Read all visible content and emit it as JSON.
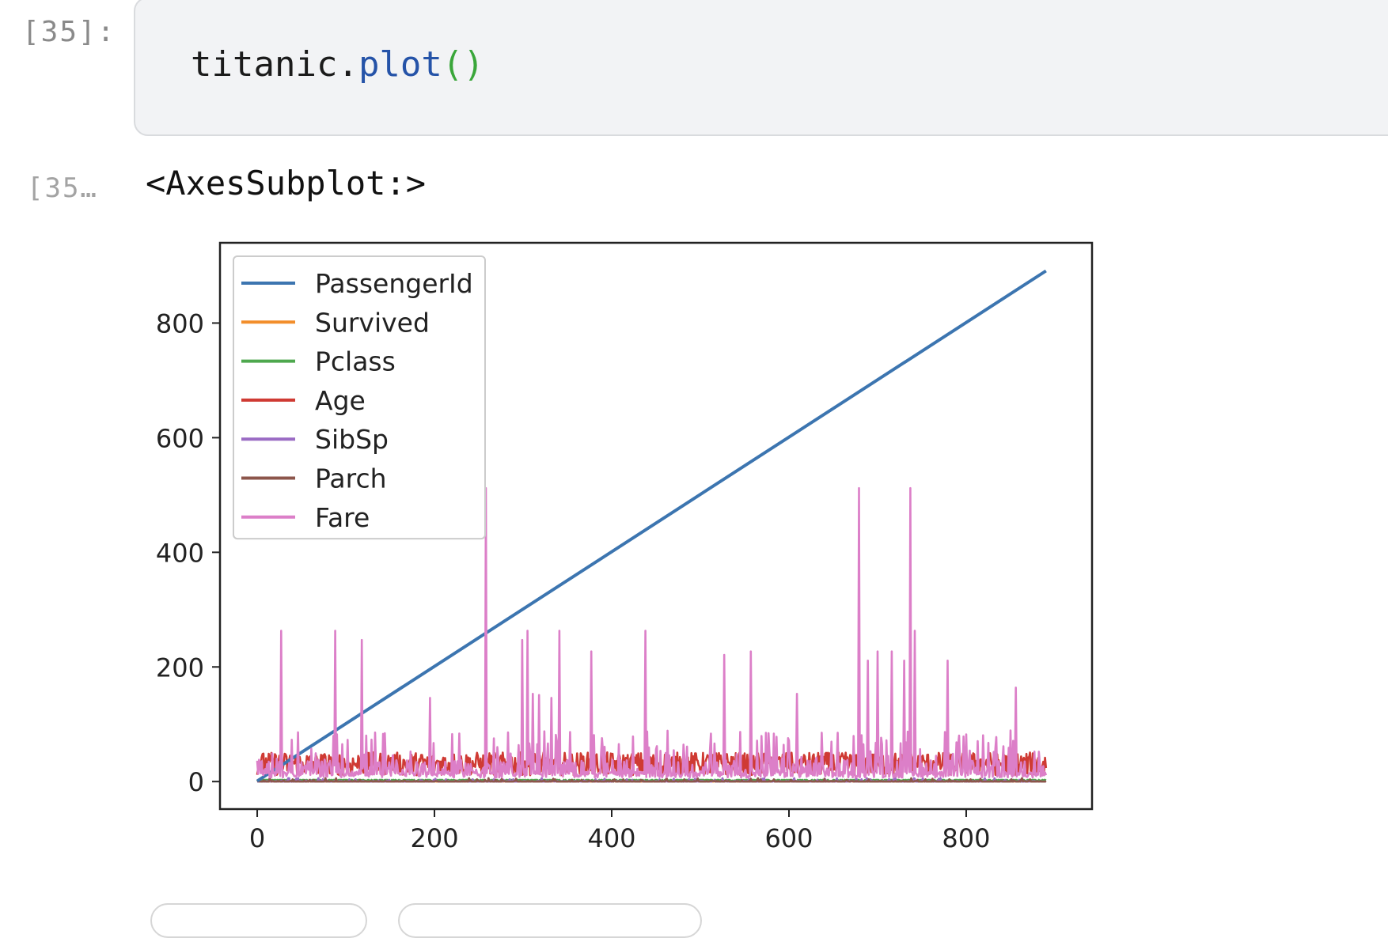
{
  "cell": {
    "in_prompt": "[35]:",
    "out_prompt": "[35…",
    "code": {
      "obj": "titanic",
      "dot": ".",
      "method": "plot",
      "parens": "()"
    },
    "output_text": "<AxesSubplot:>"
  },
  "chart_data": {
    "type": "line",
    "xlim": [
      -42,
      942
    ],
    "ylim": [
      -48,
      940
    ],
    "x_ticks": [
      0,
      200,
      400,
      600,
      800
    ],
    "y_ticks": [
      0,
      200,
      400,
      600,
      800
    ],
    "legend_position": "top-left",
    "grid": false,
    "series": [
      {
        "name": "PassengerId",
        "color": "#3c75b0",
        "type": "linear",
        "from": [
          0,
          1
        ],
        "to": [
          890,
          891
        ]
      },
      {
        "name": "Survived",
        "color": "#f28e2b",
        "type": "binary"
      },
      {
        "name": "Pclass",
        "color": "#4ea84e",
        "type": "class"
      },
      {
        "name": "Age",
        "color": "#cf3a33",
        "type": "noisy",
        "base": 29,
        "amp": 20
      },
      {
        "name": "SibSp",
        "color": "#9a6bc4",
        "type": "small"
      },
      {
        "name": "Parch",
        "color": "#8c564b",
        "type": "small"
      },
      {
        "name": "Fare",
        "color": "#dc7fc8",
        "type": "spiky",
        "spikes": [
          [
            27,
            263
          ],
          [
            88,
            263
          ],
          [
            118,
            247
          ],
          [
            195,
            146
          ],
          [
            258,
            512
          ],
          [
            299,
            247
          ],
          [
            305,
            263
          ],
          [
            311,
            153
          ],
          [
            318,
            151
          ],
          [
            332,
            146
          ],
          [
            341,
            263
          ],
          [
            377,
            227
          ],
          [
            438,
            263
          ],
          [
            527,
            221
          ],
          [
            557,
            227
          ],
          [
            609,
            153
          ],
          [
            679,
            512
          ],
          [
            689,
            211
          ],
          [
            700,
            227
          ],
          [
            716,
            227
          ],
          [
            730,
            211
          ],
          [
            737,
            512
          ],
          [
            742,
            263
          ],
          [
            779,
            211
          ],
          [
            856,
            164
          ]
        ]
      }
    ]
  }
}
